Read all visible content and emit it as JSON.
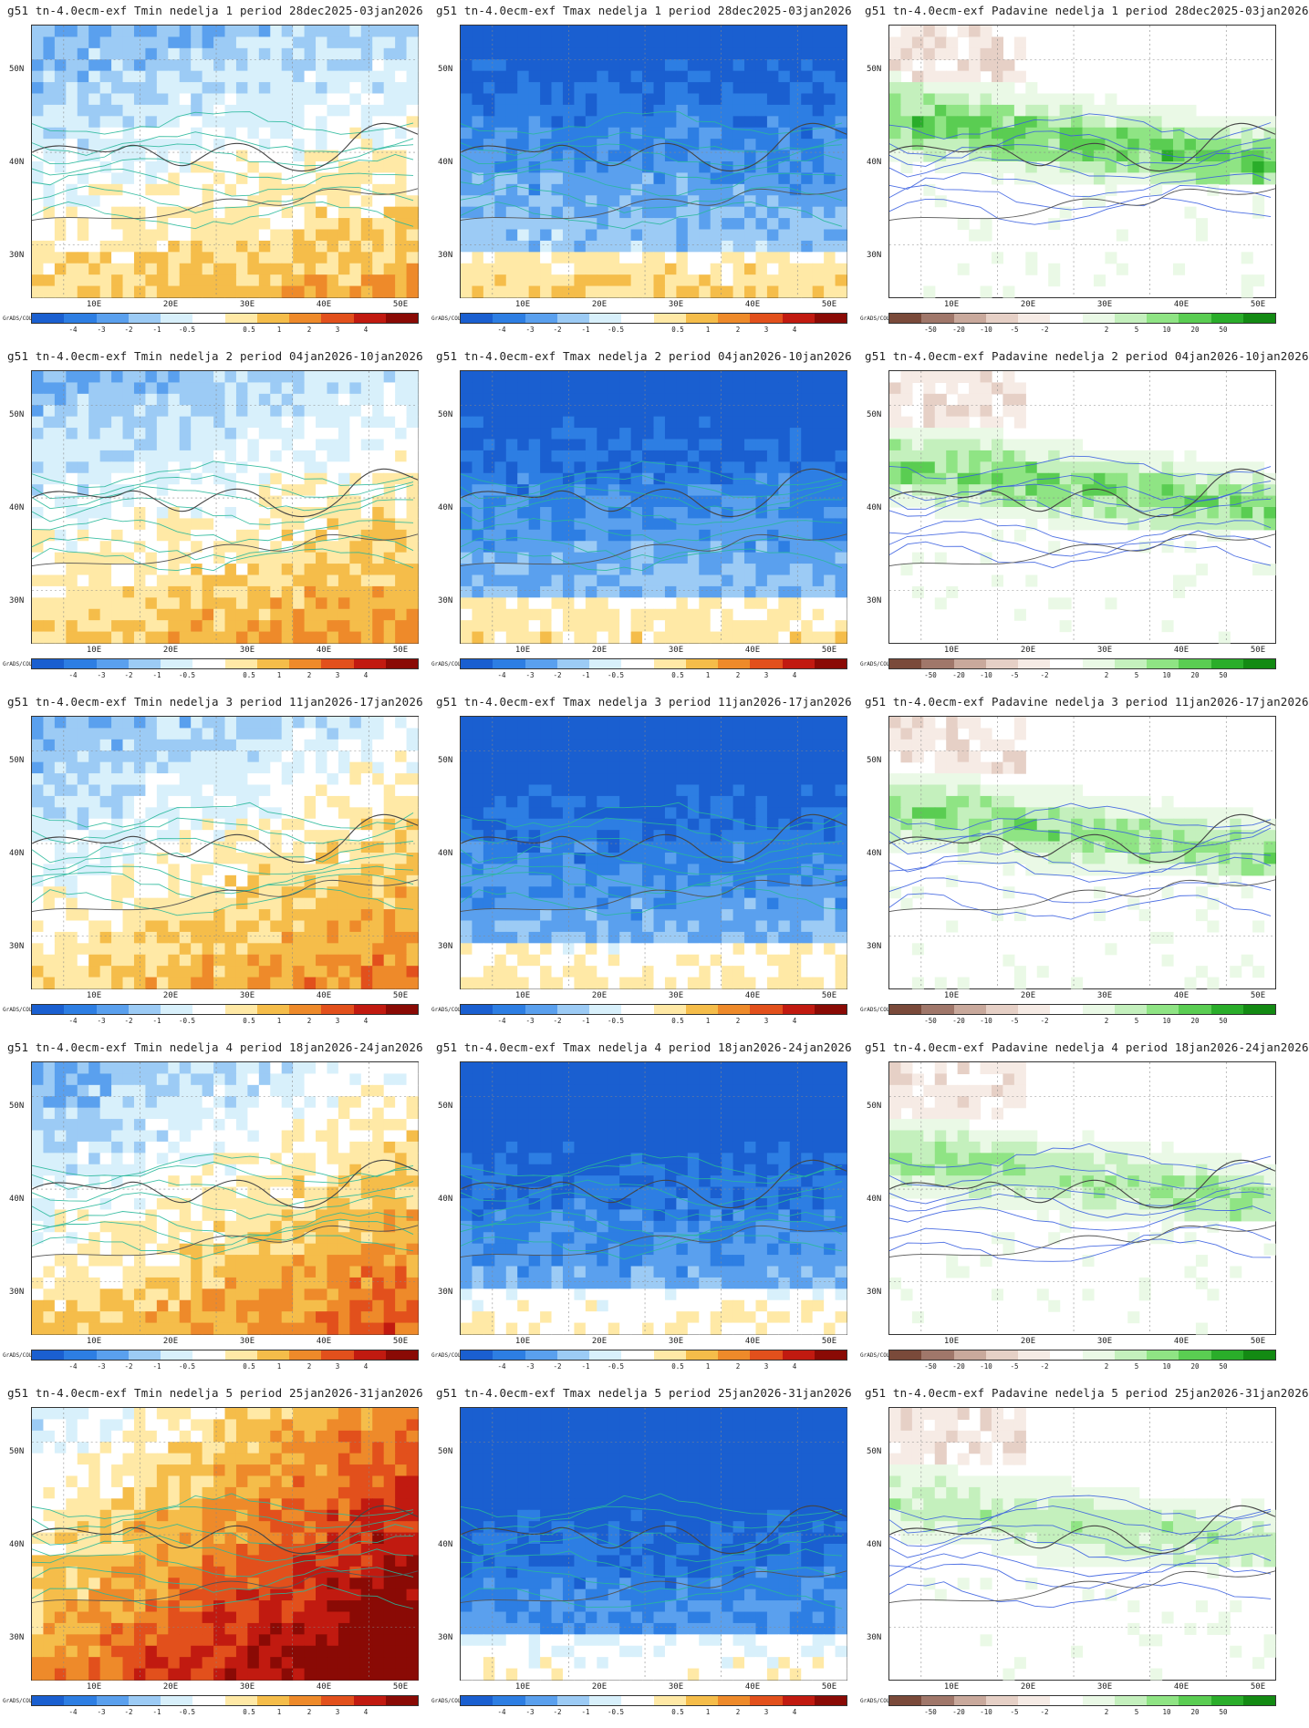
{
  "credit": "GrADS/COLA",
  "axes": {
    "y_ticks": [
      "50N",
      "40N",
      "30N"
    ],
    "x_ticks": [
      "10E",
      "20E",
      "30E",
      "40E",
      "50E"
    ]
  },
  "colorbars": {
    "temperature": {
      "colors": [
        "#1a5fd0",
        "#2d7ee3",
        "#5aa0ee",
        "#9ccbf5",
        "#d8f0fb",
        "#ffffff",
        "#ffe9a6",
        "#f5bd4a",
        "#ee8a2a",
        "#e2501c",
        "#c11a10",
        "#8a0a05"
      ],
      "labels": [
        "-4",
        "-3",
        "-2",
        "-1",
        "-0.5",
        "0.5",
        "1",
        "2",
        "3",
        "4"
      ]
    },
    "precip": {
      "colors": [
        "#7a4a3a",
        "#a0776a",
        "#c9a99c",
        "#e6d0c6",
        "#f6ebe5",
        "#ffffff",
        "#eaf9e6",
        "#c4f0bd",
        "#8fe484",
        "#5acd52",
        "#2aad2a",
        "#138a13"
      ],
      "labels": [
        "-50",
        "-20",
        "-10",
        "-5",
        "-2",
        "2",
        "5",
        "10",
        "20",
        "50"
      ]
    }
  },
  "rows": [
    {
      "week": "1",
      "period": "28dec2025-03jan2026"
    },
    {
      "week": "2",
      "period": "04jan2026-10jan2026"
    },
    {
      "week": "3",
      "period": "11jan2026-17jan2026"
    },
    {
      "week": "4",
      "period": "18jan2026-24jan2026"
    },
    {
      "week": "5",
      "period": "25jan2026-31jan2026"
    }
  ],
  "titles": [
    [
      "g51 tn-4.0ecm-exf Tmin nedelja 1 period 28dec2025-03jan2026",
      "g51 tn-4.0ecm-exf Tmax nedelja 1 period 28dec2025-03jan2026",
      "g51 tn-4.0ecm-exf Padavine nedelja 1 period 28dec2025-03jan2026"
    ],
    [
      "g51 tn-4.0ecm-exf Tmin nedelja 2 period 04jan2026-10jan2026",
      "g51 tn-4.0ecm-exf Tmax nedelja 2 period 04jan2026-10jan2026",
      "g51 tn-4.0ecm-exf Padavine nedelja 2 period 04jan2026-10jan2026"
    ],
    [
      "g51 tn-4.0ecm-exf Tmin nedelja 3 period 11jan2026-17jan2026",
      "g51 tn-4.0ecm-exf Tmax nedelja 3 period 11jan2026-17jan2026",
      "g51 tn-4.0ecm-exf Padavine nedelja 3 period 11jan2026-17jan2026"
    ],
    [
      "g51 tn-4.0ecm-exf Tmin nedelja 4 period 18jan2026-24jan2026",
      "g51 tn-4.0ecm-exf Tmax nedelja 4 period 18jan2026-24jan2026",
      "g51 tn-4.0ecm-exf Padavine nedelja 4 period 18jan2026-24jan2026"
    ],
    [
      "g51 tn-4.0ecm-exf Tmin nedelja 5 period 25jan2026-31jan2026",
      "g51 tn-4.0ecm-exf Tmax nedelja 5 period 25jan2026-31jan2026",
      "g51 tn-4.0ecm-exf Padavine nedelja 5 period 25jan2026-31jan2026"
    ]
  ],
  "variables": [
    "Tmin",
    "Tmax",
    "Padavine"
  ]
}
